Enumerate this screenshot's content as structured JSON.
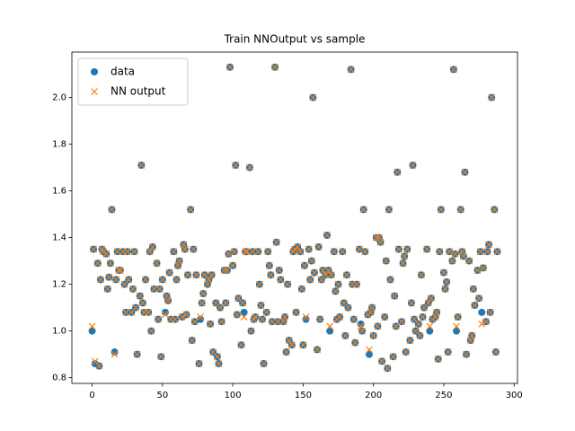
{
  "chart_data": {
    "type": "scatter",
    "title": "Train NNOutput vs sample",
    "x": [
      0,
      1,
      2,
      4,
      5,
      6,
      7,
      8,
      10,
      11,
      12,
      13,
      14,
      16,
      17,
      18,
      19,
      20,
      22,
      23,
      24,
      25,
      26,
      28,
      29,
      30,
      31,
      32,
      34,
      35,
      36,
      37,
      38,
      40,
      41,
      42,
      43,
      44,
      46,
      47,
      48,
      49,
      50,
      52,
      53,
      54,
      55,
      56,
      58,
      59,
      60,
      61,
      62,
      64,
      65,
      66,
      67,
      68,
      70,
      71,
      72,
      73,
      74,
      76,
      77,
      78,
      79,
      80,
      82,
      83,
      84,
      85,
      86,
      88,
      89,
      90,
      91,
      92,
      94,
      95,
      96,
      97,
      98,
      100,
      101,
      102,
      103,
      104,
      106,
      107,
      108,
      109,
      110,
      112,
      113,
      114,
      115,
      116,
      118,
      119,
      120,
      121,
      122,
      124,
      125,
      126,
      127,
      128,
      130,
      131,
      132,
      133,
      134,
      136,
      137,
      138,
      139,
      140,
      142,
      143,
      144,
      145,
      146,
      148,
      149,
      150,
      151,
      152,
      154,
      155,
      156,
      157,
      158,
      160,
      161,
      162,
      163,
      164,
      166,
      167,
      168,
      169,
      170,
      172,
      173,
      174,
      175,
      176,
      178,
      179,
      180,
      181,
      182,
      184,
      185,
      186,
      187,
      188,
      190,
      191,
      192,
      193,
      194,
      196,
      197,
      198,
      199,
      200,
      202,
      203,
      204,
      205,
      206,
      208,
      209,
      210,
      211,
      212,
      214,
      215,
      216,
      217,
      218,
      220,
      221,
      222,
      223,
      224,
      226,
      227,
      228,
      229,
      230,
      232,
      233,
      234,
      235,
      236,
      238,
      239,
      240,
      241,
      242,
      244,
      245,
      246,
      247,
      248,
      250,
      251,
      252,
      253,
      254,
      256,
      257,
      258,
      259,
      260,
      262,
      263,
      264,
      265,
      266,
      268,
      269,
      270,
      271,
      272,
      274,
      275,
      276,
      277,
      278,
      280,
      281,
      282,
      283,
      284,
      286,
      287,
      288
    ],
    "series": [
      {
        "name": "data",
        "color": "#1f77b4",
        "marker": "o",
        "values": [
          1.0,
          1.35,
          0.86,
          1.29,
          0.85,
          1.22,
          1.35,
          1.34,
          1.33,
          1.18,
          1.23,
          1.29,
          1.52,
          0.91,
          1.22,
          1.34,
          1.26,
          1.26,
          1.34,
          1.2,
          1.08,
          1.34,
          1.22,
          1.08,
          1.18,
          1.34,
          1.1,
          0.9,
          1.15,
          1.71,
          1.12,
          1.08,
          1.22,
          1.08,
          1.34,
          1.0,
          1.36,
          1.18,
          1.29,
          1.05,
          1.18,
          0.89,
          1.22,
          1.08,
          1.15,
          1.13,
          1.25,
          1.05,
          1.34,
          1.05,
          1.22,
          1.28,
          1.3,
          1.06,
          1.37,
          1.35,
          1.07,
          1.24,
          1.52,
          0.96,
          1.35,
          1.04,
          1.24,
          0.86,
          1.05,
          1.12,
          1.16,
          1.24,
          1.2,
          1.22,
          1.03,
          1.24,
          0.91,
          1.12,
          0.89,
          0.86,
          1.1,
          1.04,
          1.26,
          1.12,
          1.26,
          1.33,
          2.13,
          1.28,
          1.34,
          1.71,
          1.07,
          1.14,
          0.94,
          1.12,
          1.08,
          1.34,
          1.34,
          1.7,
          1.0,
          1.34,
          1.05,
          1.06,
          1.34,
          1.2,
          1.11,
          1.05,
          0.86,
          1.08,
          1.34,
          1.28,
          1.24,
          1.04,
          2.13,
          1.38,
          1.04,
          1.26,
          1.22,
          1.04,
          1.06,
          0.91,
          1.2,
          0.96,
          0.94,
          1.34,
          1.35,
          1.08,
          1.36,
          1.34,
          1.18,
          0.94,
          1.28,
          1.05,
          1.35,
          1.22,
          1.3,
          2.0,
          1.25,
          0.92,
          1.36,
          1.05,
          1.22,
          1.26,
          1.24,
          1.41,
          1.26,
          1.0,
          1.24,
          1.34,
          1.17,
          1.05,
          1.2,
          1.06,
          1.34,
          1.12,
          0.98,
          1.24,
          1.1,
          2.12,
          1.2,
          1.05,
          0.95,
          1.2,
          1.35,
          1.03,
          1.0,
          1.52,
          1.34,
          1.07,
          0.9,
          1.08,
          1.1,
          0.98,
          1.4,
          1.02,
          1.4,
          1.38,
          0.87,
          1.06,
          1.3,
          0.84,
          1.52,
          1.22,
          0.89,
          1.15,
          1.02,
          1.68,
          1.35,
          1.04,
          1.29,
          1.32,
          0.91,
          1.35,
          0.96,
          1.12,
          1.71,
          1.05,
          1.0,
          1.03,
          0.98,
          1.24,
          1.06,
          1.1,
          1.35,
          1.12,
          1.0,
          1.14,
          1.05,
          1.06,
          1.08,
          0.88,
          1.34,
          1.52,
          1.25,
          1.18,
          1.21,
          0.91,
          1.34,
          1.3,
          2.12,
          1.33,
          1.0,
          1.06,
          1.52,
          1.34,
          1.32,
          1.68,
          0.9,
          1.3,
          0.96,
          0.98,
          1.18,
          1.11,
          1.26,
          1.14,
          1.34,
          1.08,
          1.27,
          1.04,
          1.34,
          1.37,
          1.08,
          2.0,
          1.52,
          0.91,
          1.34
        ]
      },
      {
        "name": "NN output",
        "color": "#ff7f0e",
        "marker": "x",
        "values": [
          1.02,
          1.35,
          0.87,
          1.29,
          0.85,
          1.22,
          1.35,
          1.34,
          1.33,
          1.18,
          1.23,
          1.29,
          1.52,
          0.9,
          1.22,
          1.34,
          1.26,
          1.26,
          1.34,
          1.2,
          1.08,
          1.34,
          1.22,
          1.08,
          1.18,
          1.34,
          1.1,
          0.9,
          1.15,
          1.71,
          1.12,
          1.08,
          1.22,
          1.08,
          1.34,
          1.0,
          1.36,
          1.18,
          1.29,
          1.05,
          1.18,
          0.89,
          1.22,
          1.07,
          1.15,
          1.13,
          1.25,
          1.05,
          1.34,
          1.05,
          1.22,
          1.28,
          1.3,
          1.06,
          1.37,
          1.35,
          1.07,
          1.24,
          1.52,
          0.96,
          1.35,
          1.04,
          1.24,
          0.86,
          1.06,
          1.12,
          1.16,
          1.24,
          1.2,
          1.22,
          1.03,
          1.24,
          0.91,
          1.12,
          0.89,
          0.86,
          1.1,
          1.04,
          1.26,
          1.12,
          1.26,
          1.33,
          2.13,
          1.28,
          1.34,
          1.71,
          1.07,
          1.14,
          0.94,
          1.12,
          1.06,
          1.34,
          1.34,
          1.7,
          1.0,
          1.34,
          1.05,
          1.06,
          1.34,
          1.2,
          1.11,
          1.05,
          0.86,
          1.08,
          1.34,
          1.28,
          1.24,
          1.04,
          2.13,
          1.38,
          1.04,
          1.26,
          1.22,
          1.04,
          1.06,
          0.91,
          1.2,
          0.96,
          0.94,
          1.34,
          1.35,
          1.08,
          1.36,
          1.34,
          1.18,
          0.94,
          1.28,
          1.06,
          1.35,
          1.22,
          1.3,
          2.0,
          1.25,
          0.92,
          1.36,
          1.05,
          1.22,
          1.26,
          1.24,
          1.41,
          1.26,
          1.02,
          1.24,
          1.34,
          1.17,
          1.05,
          1.2,
          1.06,
          1.34,
          1.12,
          0.98,
          1.24,
          1.1,
          2.12,
          1.2,
          1.05,
          0.95,
          1.2,
          1.35,
          1.02,
          1.0,
          1.52,
          1.34,
          1.07,
          0.92,
          1.08,
          1.1,
          0.98,
          1.4,
          1.02,
          1.4,
          1.38,
          0.87,
          1.06,
          1.3,
          0.84,
          1.52,
          1.22,
          0.89,
          1.15,
          1.02,
          1.68,
          1.35,
          1.04,
          1.29,
          1.32,
          0.91,
          1.35,
          0.96,
          1.12,
          1.71,
          1.05,
          1.0,
          1.03,
          0.98,
          1.24,
          1.06,
          1.1,
          1.35,
          1.12,
          1.02,
          1.14,
          1.05,
          1.06,
          1.08,
          0.88,
          1.34,
          1.52,
          1.25,
          1.18,
          1.21,
          0.91,
          1.34,
          1.3,
          2.12,
          1.33,
          1.02,
          1.06,
          1.52,
          1.34,
          1.32,
          1.68,
          0.9,
          1.3,
          0.96,
          0.98,
          1.18,
          1.11,
          1.26,
          1.14,
          1.34,
          1.03,
          1.27,
          1.04,
          1.34,
          1.37,
          1.08,
          2.0,
          1.52,
          0.91,
          1.34
        ]
      }
    ],
    "xlim": [
      -14.4,
      302.4
    ],
    "ylim": [
      0.7755,
      2.1945
    ],
    "xticks": [
      0,
      50,
      100,
      150,
      200,
      250,
      300
    ],
    "yticks": [
      0.8,
      {
        "value": 1,
        "label": "1.0"
      },
      1.2,
      1.4,
      1.6,
      1.8,
      {
        "value": 2,
        "label": "2.0"
      }
    ],
    "legend": "upper left"
  }
}
